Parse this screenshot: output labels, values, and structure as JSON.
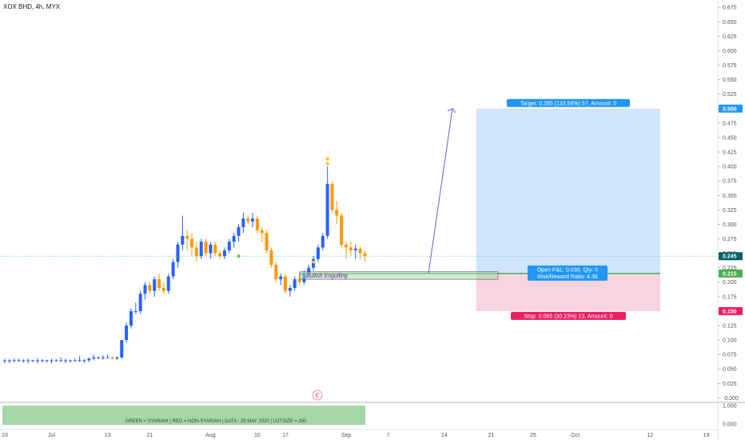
{
  "header": {
    "title": "XOX BHD, 4h, MYX"
  },
  "chart_data": {
    "type": "candlestick",
    "y_ticks": [
      "0.675",
      "0.650",
      "0.625",
      "0.600",
      "0.575",
      "0.550",
      "0.525",
      "0.500",
      "0.475",
      "0.450",
      "0.425",
      "0.400",
      "0.375",
      "0.350",
      "0.325",
      "0.300",
      "0.275",
      "0.250",
      "0.225",
      "0.200",
      "0.175",
      "0.150",
      "0.125",
      "0.100",
      "0.075",
      "0.050",
      "0.025",
      "-0.000"
    ],
    "ylim": [
      -0.005,
      0.685
    ],
    "x_ticks": [
      {
        "label": "23",
        "i": 0
      },
      {
        "label": "Jul",
        "i": 10
      },
      {
        "label": "13",
        "i": 22
      },
      {
        "label": "21",
        "i": 31
      },
      {
        "label": "Aug",
        "i": 44
      },
      {
        "label": "10",
        "i": 54
      },
      {
        "label": "17",
        "i": 60
      },
      {
        "label": "Sep",
        "i": 73
      },
      {
        "label": "7",
        "i": 82
      },
      {
        "label": "14",
        "i": 94
      },
      {
        "label": "21",
        "i": 104
      },
      {
        "label": "25",
        "i": 113
      },
      {
        "label": "Oct",
        "i": 122
      },
      {
        "label": "12",
        "i": 138
      },
      {
        "label": "19",
        "i": 150
      }
    ],
    "candles": [
      [
        0.065,
        0.068,
        0.06,
        0.065
      ],
      [
        0.065,
        0.067,
        0.06,
        0.065
      ],
      [
        0.065,
        0.068,
        0.062,
        0.065
      ],
      [
        0.065,
        0.068,
        0.063,
        0.065
      ],
      [
        0.065,
        0.067,
        0.061,
        0.065
      ],
      [
        0.065,
        0.068,
        0.06,
        0.065
      ],
      [
        0.065,
        0.066,
        0.062,
        0.065
      ],
      [
        0.065,
        0.069,
        0.06,
        0.065
      ],
      [
        0.065,
        0.067,
        0.062,
        0.065
      ],
      [
        0.065,
        0.066,
        0.061,
        0.065
      ],
      [
        0.065,
        0.068,
        0.06,
        0.065
      ],
      [
        0.065,
        0.067,
        0.063,
        0.065
      ],
      [
        0.065,
        0.07,
        0.062,
        0.065
      ],
      [
        0.065,
        0.068,
        0.06,
        0.065
      ],
      [
        0.065,
        0.066,
        0.061,
        0.065
      ],
      [
        0.065,
        0.068,
        0.063,
        0.065
      ],
      [
        0.065,
        0.072,
        0.062,
        0.065
      ],
      [
        0.065,
        0.067,
        0.06,
        0.065
      ],
      [
        0.065,
        0.07,
        0.062,
        0.068
      ],
      [
        0.068,
        0.075,
        0.065,
        0.07
      ],
      [
        0.07,
        0.072,
        0.067,
        0.07
      ],
      [
        0.07,
        0.074,
        0.066,
        0.07
      ],
      [
        0.07,
        0.075,
        0.068,
        0.07
      ],
      [
        0.07,
        0.072,
        0.067,
        0.068
      ],
      [
        0.068,
        0.072,
        0.065,
        0.07
      ],
      [
        0.07,
        0.1,
        0.068,
        0.1
      ],
      [
        0.1,
        0.13,
        0.095,
        0.125
      ],
      [
        0.125,
        0.155,
        0.12,
        0.15
      ],
      [
        0.15,
        0.165,
        0.145,
        0.15
      ],
      [
        0.15,
        0.185,
        0.145,
        0.18
      ],
      [
        0.18,
        0.2,
        0.17,
        0.195
      ],
      [
        0.195,
        0.2,
        0.18,
        0.185
      ],
      [
        0.185,
        0.21,
        0.175,
        0.205
      ],
      [
        0.205,
        0.215,
        0.185,
        0.19
      ],
      [
        0.19,
        0.2,
        0.18,
        0.185
      ],
      [
        0.185,
        0.215,
        0.18,
        0.21
      ],
      [
        0.21,
        0.24,
        0.205,
        0.235
      ],
      [
        0.235,
        0.27,
        0.225,
        0.265
      ],
      [
        0.265,
        0.315,
        0.255,
        0.28
      ],
      [
        0.28,
        0.29,
        0.255,
        0.275
      ],
      [
        0.275,
        0.285,
        0.245,
        0.26
      ],
      [
        0.26,
        0.27,
        0.235,
        0.245
      ],
      [
        0.245,
        0.275,
        0.24,
        0.27
      ],
      [
        0.27,
        0.275,
        0.245,
        0.25
      ],
      [
        0.25,
        0.27,
        0.24,
        0.265
      ],
      [
        0.265,
        0.27,
        0.245,
        0.25
      ],
      [
        0.25,
        0.255,
        0.24,
        0.245
      ],
      [
        0.245,
        0.26,
        0.24,
        0.255
      ],
      [
        0.255,
        0.275,
        0.25,
        0.27
      ],
      [
        0.27,
        0.285,
        0.26,
        0.28
      ],
      [
        0.28,
        0.3,
        0.27,
        0.295
      ],
      [
        0.295,
        0.32,
        0.285,
        0.31
      ],
      [
        0.31,
        0.315,
        0.3,
        0.305
      ],
      [
        0.305,
        0.32,
        0.295,
        0.31
      ],
      [
        0.31,
        0.315,
        0.285,
        0.29
      ],
      [
        0.29,
        0.295,
        0.27,
        0.285
      ],
      [
        0.285,
        0.29,
        0.25,
        0.255
      ],
      [
        0.255,
        0.26,
        0.225,
        0.23
      ],
      [
        0.23,
        0.235,
        0.2,
        0.205
      ],
      [
        0.205,
        0.215,
        0.195,
        0.21
      ],
      [
        0.21,
        0.215,
        0.18,
        0.185
      ],
      [
        0.185,
        0.195,
        0.175,
        0.19
      ],
      [
        0.19,
        0.21,
        0.185,
        0.205
      ],
      [
        0.205,
        0.215,
        0.195,
        0.2
      ],
      [
        0.2,
        0.22,
        0.195,
        0.215
      ],
      [
        0.215,
        0.23,
        0.21,
        0.225
      ],
      [
        0.225,
        0.245,
        0.22,
        0.24
      ],
      [
        0.24,
        0.265,
        0.235,
        0.26
      ],
      [
        0.26,
        0.285,
        0.255,
        0.28
      ],
      [
        0.28,
        0.4,
        0.275,
        0.37
      ],
      [
        0.37,
        0.375,
        0.32,
        0.325
      ],
      [
        0.325,
        0.34,
        0.3,
        0.315
      ],
      [
        0.315,
        0.32,
        0.26,
        0.265
      ],
      [
        0.265,
        0.27,
        0.24,
        0.26
      ],
      [
        0.26,
        0.27,
        0.245,
        0.255
      ],
      [
        0.255,
        0.265,
        0.24,
        0.258
      ],
      [
        0.258,
        0.262,
        0.24,
        0.25
      ],
      [
        0.25,
        0.255,
        0.235,
        0.245
      ]
    ],
    "current_price": "0.245",
    "markers": [
      {
        "label": "Bullish Engulfing",
        "i": 60
      }
    ],
    "position": {
      "entry": 0.215,
      "target": 0.5,
      "stop": 0.15,
      "target_axis_label": "0.500",
      "entry_axis_label": "0.215",
      "stop_axis_label": "0.150",
      "target_text": "Target: 0.285 (132.56%) 57, Amount: 0",
      "stop_text": "Stop: 0.065 (30.23%) 13, Amount: 0",
      "pnl_text": "Open P&L: 0.030, Qty: 0",
      "ratio_text": "Risk/Reward Ratio: 4.38",
      "colors": {
        "profit": "#cfe5fb",
        "loss": "#f8d4e0",
        "target_badge": "#2196f3",
        "stop_badge": "#e91e63",
        "entry_line": "#4caf50"
      }
    },
    "bullish_box": {
      "low": 0.205,
      "high": 0.218
    },
    "arrow": {
      "from": {
        "i": 73,
        "price": 0.215
      },
      "to": {
        "i": 82,
        "price": 0.5
      }
    },
    "indicator": {
      "text": "GREEN = SYARIAH   |  RED = NON-SYARIAH   |  DATA : 29 MAY 2020   |   LOTSIZE = 200",
      "y_ticks": [
        "1.000",
        "0.000"
      ],
      "color": "#a5d6a7"
    },
    "event_label": "E",
    "colors": {
      "up": "#2962ff",
      "down": "#ff9800",
      "crosshair": "#26a69a",
      "current": "#006064",
      "arrow": "#7e57c2"
    }
  }
}
